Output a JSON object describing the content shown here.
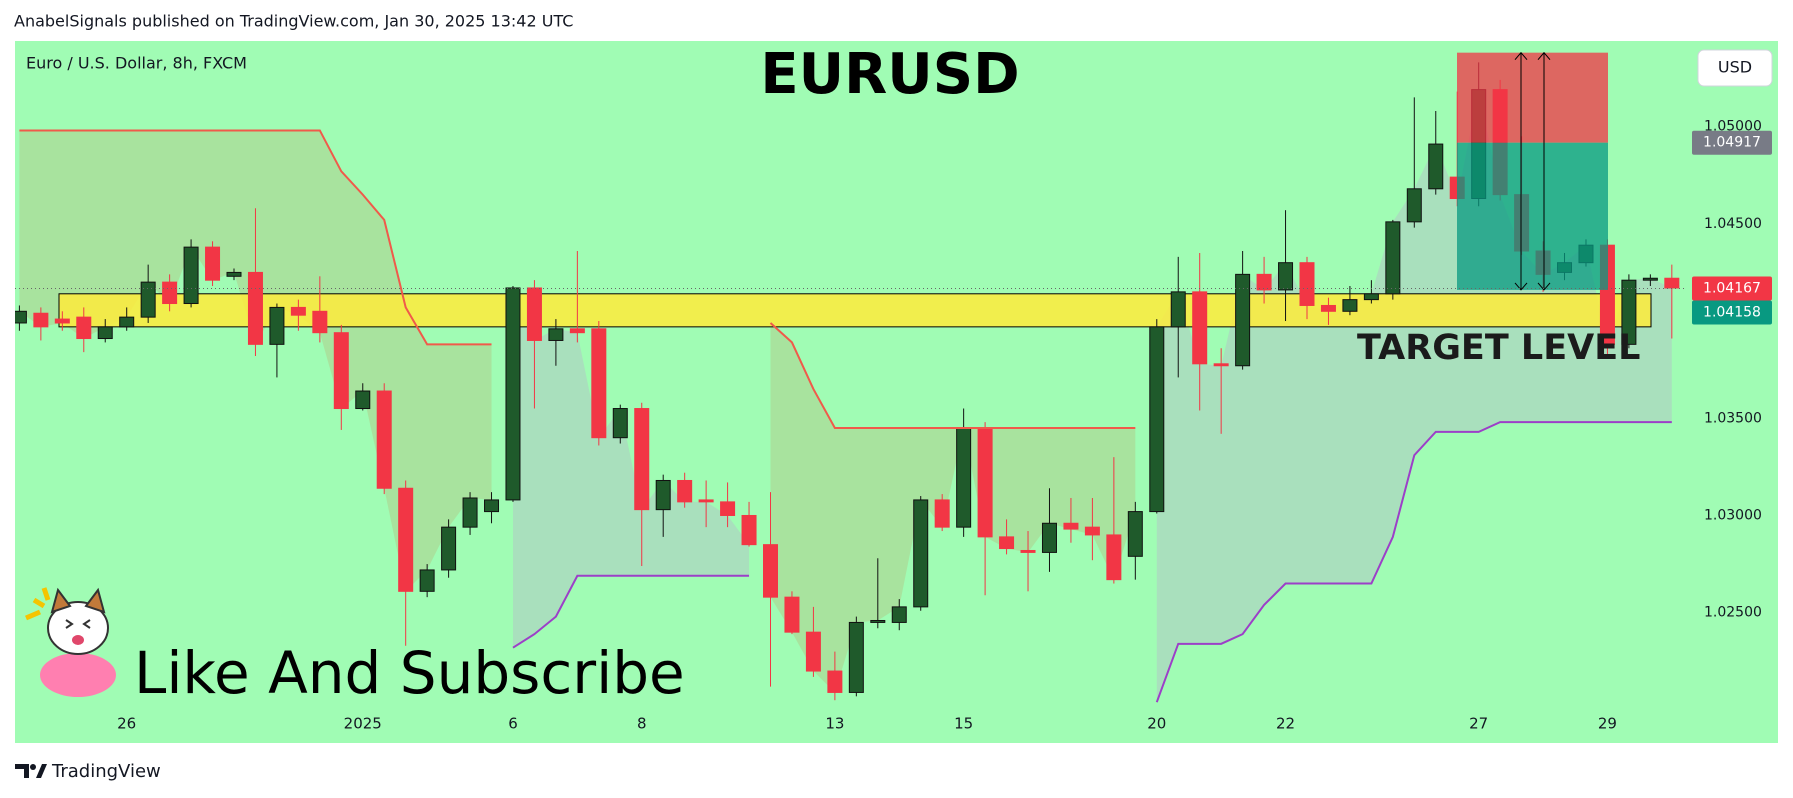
{
  "header": {
    "byline": "AnabelSignals published on TradingView.com, Jan 30, 2025 13:42 UTC"
  },
  "footer": {
    "brand": "TradingView"
  },
  "chart_data": {
    "type": "candlestick",
    "title": "EURUSD",
    "symbol": "Euro / U.S. Dollar, 8h, FXCM",
    "currency": "USD",
    "annotations": {
      "target": "TARGET LEVEL",
      "promo": "Like And Subscribe"
    },
    "categories": [
      null,
      null,
      null,
      null,
      null,
      "26",
      null,
      null,
      null,
      null,
      null,
      null,
      null,
      null,
      null,
      null,
      "2025",
      null,
      null,
      null,
      null,
      null,
      null,
      "6",
      null,
      null,
      null,
      null,
      null,
      "8",
      null,
      null,
      null,
      null,
      null,
      null,
      null,
      null,
      "13",
      null,
      null,
      null,
      null,
      null,
      "15",
      null,
      null,
      null,
      null,
      null,
      null,
      null,
      null,
      "20",
      null,
      null,
      null,
      null,
      null,
      "22",
      null,
      null,
      null,
      null,
      null,
      null,
      null,
      null,
      "27",
      null,
      null,
      null,
      null,
      null,
      "29",
      null,
      null,
      null
    ],
    "open": [
      1.0399,
      1.0404,
      1.0401,
      1.0402,
      1.0391,
      1.0397,
      1.0402,
      1.042,
      1.0409,
      1.0438,
      1.0423,
      1.0425,
      1.0388,
      1.0407,
      1.0405,
      1.0394,
      1.0355,
      1.0364,
      1.0314,
      1.0261,
      1.0272,
      1.0294,
      1.0302,
      1.0308,
      1.0417,
      1.039,
      1.0396,
      1.0396,
      1.034,
      1.0355,
      1.0303,
      1.0318,
      1.0308,
      1.0307,
      1.03,
      1.0285,
      1.0258,
      1.024,
      1.022,
      1.0209,
      1.0245,
      1.0245,
      1.0253,
      1.0308,
      1.0294,
      1.0345,
      1.0289,
      1.0282,
      1.0281,
      1.0296,
      1.0294,
      1.029,
      1.0279,
      1.0302,
      1.0397,
      1.0415,
      1.0378,
      1.0377,
      1.0424,
      1.0416,
      1.043,
      1.0408,
      1.0405,
      1.0411,
      1.0414,
      1.0451,
      1.0468,
      1.0474,
      1.0463,
      1.0519,
      1.0465,
      1.0436,
      1.0425,
      1.043,
      1.0439,
      1.0388,
      1.0421,
      1.0422
    ],
    "high": [
      1.0408,
      1.0407,
      1.0405,
      1.0407,
      1.0401,
      1.0407,
      1.0429,
      1.0424,
      1.0442,
      1.0441,
      1.0427,
      1.0458,
      1.0409,
      1.0411,
      1.0423,
      1.0398,
      1.0368,
      1.0368,
      1.0318,
      1.0275,
      1.0298,
      1.0312,
      1.0312,
      1.0418,
      1.0421,
      1.0401,
      1.0436,
      1.04,
      1.0357,
      1.0358,
      1.0321,
      1.0322,
      1.0318,
      1.0317,
      1.0307,
      1.0312,
      1.0261,
      1.0253,
      1.023,
      1.0248,
      1.0278,
      1.0257,
      1.031,
      1.0311,
      1.0355,
      1.0348,
      1.0298,
      1.0292,
      1.0314,
      1.0309,
      1.0309,
      1.033,
      1.0307,
      1.0401,
      1.0433,
      1.0435,
      1.0386,
      1.0436,
      1.0433,
      1.0457,
      1.0433,
      1.0412,
      1.0418,
      1.0421,
      1.0452,
      1.0515,
      1.0508,
      1.0518,
      1.0533,
      1.0524,
      1.0495,
      1.0441,
      1.0435,
      1.0442,
      1.0442,
      1.0424,
      1.0424,
      1.0429
    ],
    "low": [
      1.0395,
      1.039,
      1.0395,
      1.0384,
      1.0389,
      1.0395,
      1.0399,
      1.0405,
      1.0407,
      1.0418,
      1.0421,
      1.0382,
      1.0371,
      1.0395,
      1.0389,
      1.0344,
      1.0354,
      1.0311,
      1.0233,
      1.0258,
      1.0268,
      1.029,
      1.0296,
      1.0307,
      1.0355,
      1.0377,
      1.0389,
      1.0336,
      1.0337,
      1.0274,
      1.0289,
      1.0304,
      1.0294,
      1.0294,
      1.0284,
      1.0212,
      1.0239,
      1.0217,
      1.0205,
      1.0207,
      1.0242,
      1.0241,
      1.0251,
      1.0292,
      1.0289,
      1.0259,
      1.028,
      1.0261,
      1.0271,
      1.0286,
      1.0277,
      1.0265,
      1.0267,
      1.0301,
      1.0371,
      1.0354,
      1.0342,
      1.0375,
      1.0409,
      1.04,
      1.0401,
      1.0398,
      1.0403,
      1.0409,
      1.0411,
      1.0448,
      1.0465,
      1.0459,
      1.0459,
      1.0462,
      1.0434,
      1.0415,
      1.0421,
      1.0428,
      1.0383,
      1.0386,
      1.0418,
      1.0391
    ],
    "close": [
      1.0405,
      1.0397,
      1.0399,
      1.0391,
      1.0397,
      1.0402,
      1.042,
      1.0409,
      1.0438,
      1.0421,
      1.0425,
      1.0388,
      1.0407,
      1.0403,
      1.0394,
      1.0355,
      1.0364,
      1.0314,
      1.0261,
      1.0272,
      1.0294,
      1.0309,
      1.0308,
      1.0417,
      1.039,
      1.0396,
      1.0394,
      1.034,
      1.0355,
      1.0303,
      1.0318,
      1.0307,
      1.0307,
      1.03,
      1.0285,
      1.0258,
      1.024,
      1.022,
      1.0209,
      1.0245,
      1.0246,
      1.0253,
      1.0308,
      1.0294,
      1.0345,
      1.0289,
      1.0283,
      1.0281,
      1.0296,
      1.0293,
      1.029,
      1.0267,
      1.0302,
      1.0397,
      1.0415,
      1.0378,
      1.0377,
      1.0424,
      1.0416,
      1.043,
      1.0408,
      1.0405,
      1.0411,
      1.0414,
      1.0451,
      1.0468,
      1.0491,
      1.0463,
      1.0519,
      1.0465,
      1.0436,
      1.0424,
      1.043,
      1.0439,
      1.0388,
      1.0421,
      1.0422,
      1.0417
    ],
    "up_color": "#1f5a2b",
    "down_color": "#f23645",
    "upper_line": {
      "color": "#f05a4a",
      "fill": "rgba(190,170,110,0.30)",
      "values": [
        1.0498,
        1.0498,
        1.0498,
        1.0498,
        1.0498,
        1.0498,
        1.0498,
        1.0498,
        1.0498,
        1.0498,
        1.0498,
        1.0498,
        1.0498,
        1.0498,
        1.0498,
        1.0477,
        1.0465,
        1.0452,
        1.0407,
        1.0388,
        1.0388,
        1.0388,
        1.0388,
        null,
        null,
        null,
        null,
        null,
        null,
        null,
        null,
        null,
        null,
        null,
        null,
        1.0399,
        1.0389,
        1.0365,
        1.0345,
        1.0345,
        1.0345,
        1.0345,
        1.0345,
        1.0345,
        1.0345,
        1.0345,
        1.0345,
        1.0345,
        1.0345,
        1.0345,
        1.0345,
        1.0345,
        1.0345,
        null,
        null,
        null,
        null,
        null,
        null,
        null,
        null,
        null,
        null,
        null,
        null,
        null,
        null,
        null,
        null,
        null,
        null,
        null,
        null,
        null,
        null,
        null,
        null,
        null
      ]
    },
    "lower_line": {
      "color": "#9c3fc8",
      "fill": "rgba(180,190,200,0.45)",
      "values": [
        null,
        null,
        null,
        null,
        null,
        null,
        null,
        null,
        null,
        null,
        null,
        null,
        null,
        null,
        null,
        null,
        null,
        null,
        null,
        null,
        null,
        null,
        null,
        1.0232,
        1.0239,
        1.0248,
        1.0269,
        1.0269,
        1.0269,
        1.0269,
        1.0269,
        1.0269,
        1.0269,
        1.0269,
        1.0269,
        null,
        null,
        null,
        null,
        null,
        null,
        null,
        null,
        null,
        null,
        null,
        null,
        null,
        null,
        null,
        null,
        null,
        null,
        1.0204,
        1.0234,
        1.0234,
        1.0234,
        1.0239,
        1.0254,
        1.0265,
        1.0265,
        1.0265,
        1.0265,
        1.0265,
        1.0289,
        1.0331,
        1.0343,
        1.0343,
        1.0343,
        1.0348,
        1.0348,
        1.0348,
        1.0348,
        1.0348,
        1.0348,
        1.0348,
        1.0348,
        1.0348
      ]
    },
    "zone": [
      1.0397,
      1.0414
    ],
    "zone_color": "#ffeb3b",
    "position": {
      "entry": 1.04917,
      "stop": 1.0538,
      "target": 1.0416,
      "stop_color": "rgba(242,54,69,0.75)",
      "target_color": "rgba(8,153,129,0.75)"
    },
    "price_labels": [
      {
        "value": 1.04917,
        "color": "#787b86"
      },
      {
        "value": 1.04167,
        "color": "#f23645"
      },
      {
        "value": 1.04158,
        "color": "#089981"
      }
    ],
    "ylim": [
      1.0183,
      1.0544
    ],
    "yticks": [
      {
        "value": 1.025,
        "label": "1.02500"
      },
      {
        "value": 1.03,
        "label": "1.03000"
      },
      {
        "value": 1.035,
        "label": "1.03500"
      },
      {
        "value": 1.045,
        "label": "1.04500"
      },
      {
        "value": 1.05,
        "label": "1.05000"
      }
    ],
    "background": "#a0fcb4"
  }
}
